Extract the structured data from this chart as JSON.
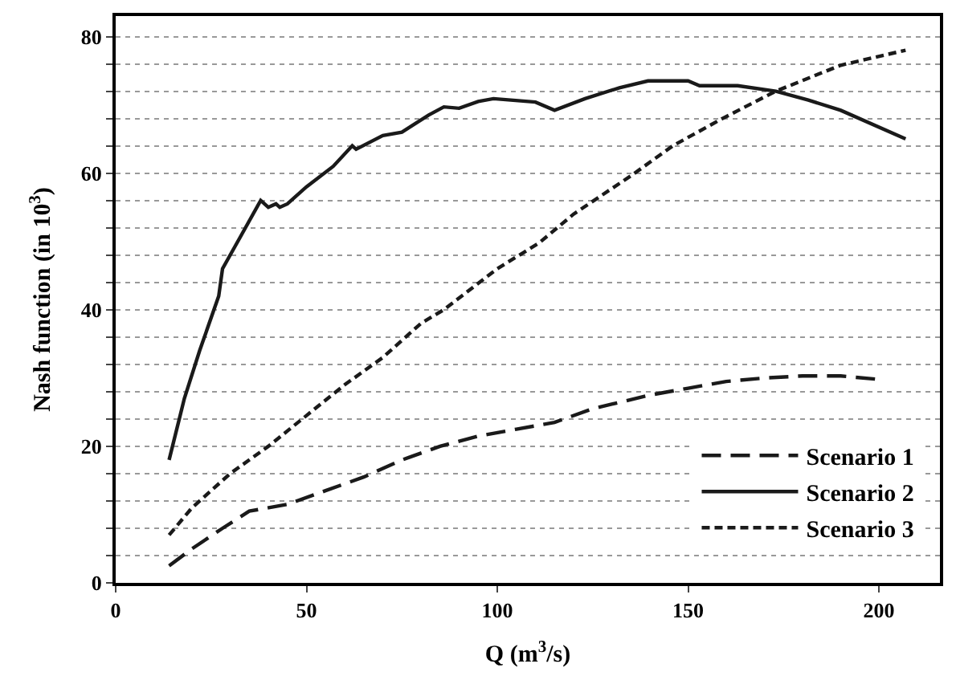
{
  "chart_data": {
    "type": "line",
    "xlabel": "Q (m$^{3}$/s)",
    "ylabel": "Nash function (in 10$^{3}$)",
    "xlim": [
      0,
      216
    ],
    "xticks": [
      0,
      50,
      100,
      150,
      200
    ],
    "ylim": [
      0,
      83
    ],
    "yticks": [
      0,
      {
        "value": 4,
        "label": null
      },
      {
        "value": 8,
        "label": null
      },
      {
        "value": 12,
        "label": null
      },
      {
        "value": 16,
        "label": null
      },
      20,
      {
        "value": 24,
        "label": null
      },
      {
        "value": 28,
        "label": null
      },
      {
        "value": 32,
        "label": null
      },
      {
        "value": 36,
        "label": null
      },
      40,
      {
        "value": 44,
        "label": null
      },
      {
        "value": 48,
        "label": null
      },
      {
        "value": 52,
        "label": null
      },
      {
        "value": 56,
        "label": null
      },
      60,
      {
        "value": 64,
        "label": null
      },
      {
        "value": 68,
        "label": null
      },
      {
        "value": 72,
        "label": null
      },
      {
        "value": 76,
        "label": null
      },
      80
    ],
    "grid": "y",
    "legend": "bottom right",
    "marker": "none",
    "series": [
      {
        "name": "Scenario 1",
        "color": "#1a1a1a",
        "line_style": "dashed",
        "x": [
          14,
          20,
          28,
          35,
          45,
          55,
          65,
          75,
          85,
          95,
          105,
          115,
          125,
          140,
          150,
          160,
          170,
          180,
          190,
          200
        ],
        "values": [
          2.5,
          5,
          8,
          10.5,
          11.5,
          13.5,
          15.5,
          18,
          20,
          21.5,
          22.5,
          23.5,
          25.5,
          27.5,
          28.5,
          29.5,
          30,
          30.3,
          30.3,
          29.8
        ]
      },
      {
        "name": "Scenario 2",
        "color": "#1a1a1a",
        "line_style": "solid",
        "x": [
          14,
          18,
          22,
          27,
          28,
          33,
          38,
          40,
          42,
          43,
          45,
          50,
          57,
          62,
          63,
          70,
          75,
          82,
          86,
          90,
          95,
          99,
          110,
          115,
          123,
          132,
          139.5,
          150,
          153,
          163,
          173,
          181.5,
          190,
          207
        ],
        "values": [
          18,
          27,
          34,
          42,
          46,
          51,
          56,
          55,
          55.5,
          55,
          55.5,
          58,
          61,
          64,
          63.5,
          65.5,
          66,
          68.5,
          69.7,
          69.5,
          70.5,
          70.9,
          70.4,
          69.2,
          70.9,
          72.5,
          73.5,
          73.5,
          72.8,
          72.8,
          72,
          70.7,
          69.2,
          65
        ]
      },
      {
        "name": "Scenario 3",
        "color": "#1a1a1a",
        "line_style": "dashed",
        "x": [
          14,
          20,
          30,
          40,
          50,
          60,
          70,
          80,
          86,
          100,
          111,
          120,
          135,
          146,
          159,
          173,
          190,
          207
        ],
        "values": [
          7,
          11,
          16,
          20,
          24.5,
          29,
          33,
          38,
          40,
          46,
          49.8,
          54,
          59.6,
          64,
          68,
          72,
          75.8,
          78
        ]
      }
    ]
  }
}
